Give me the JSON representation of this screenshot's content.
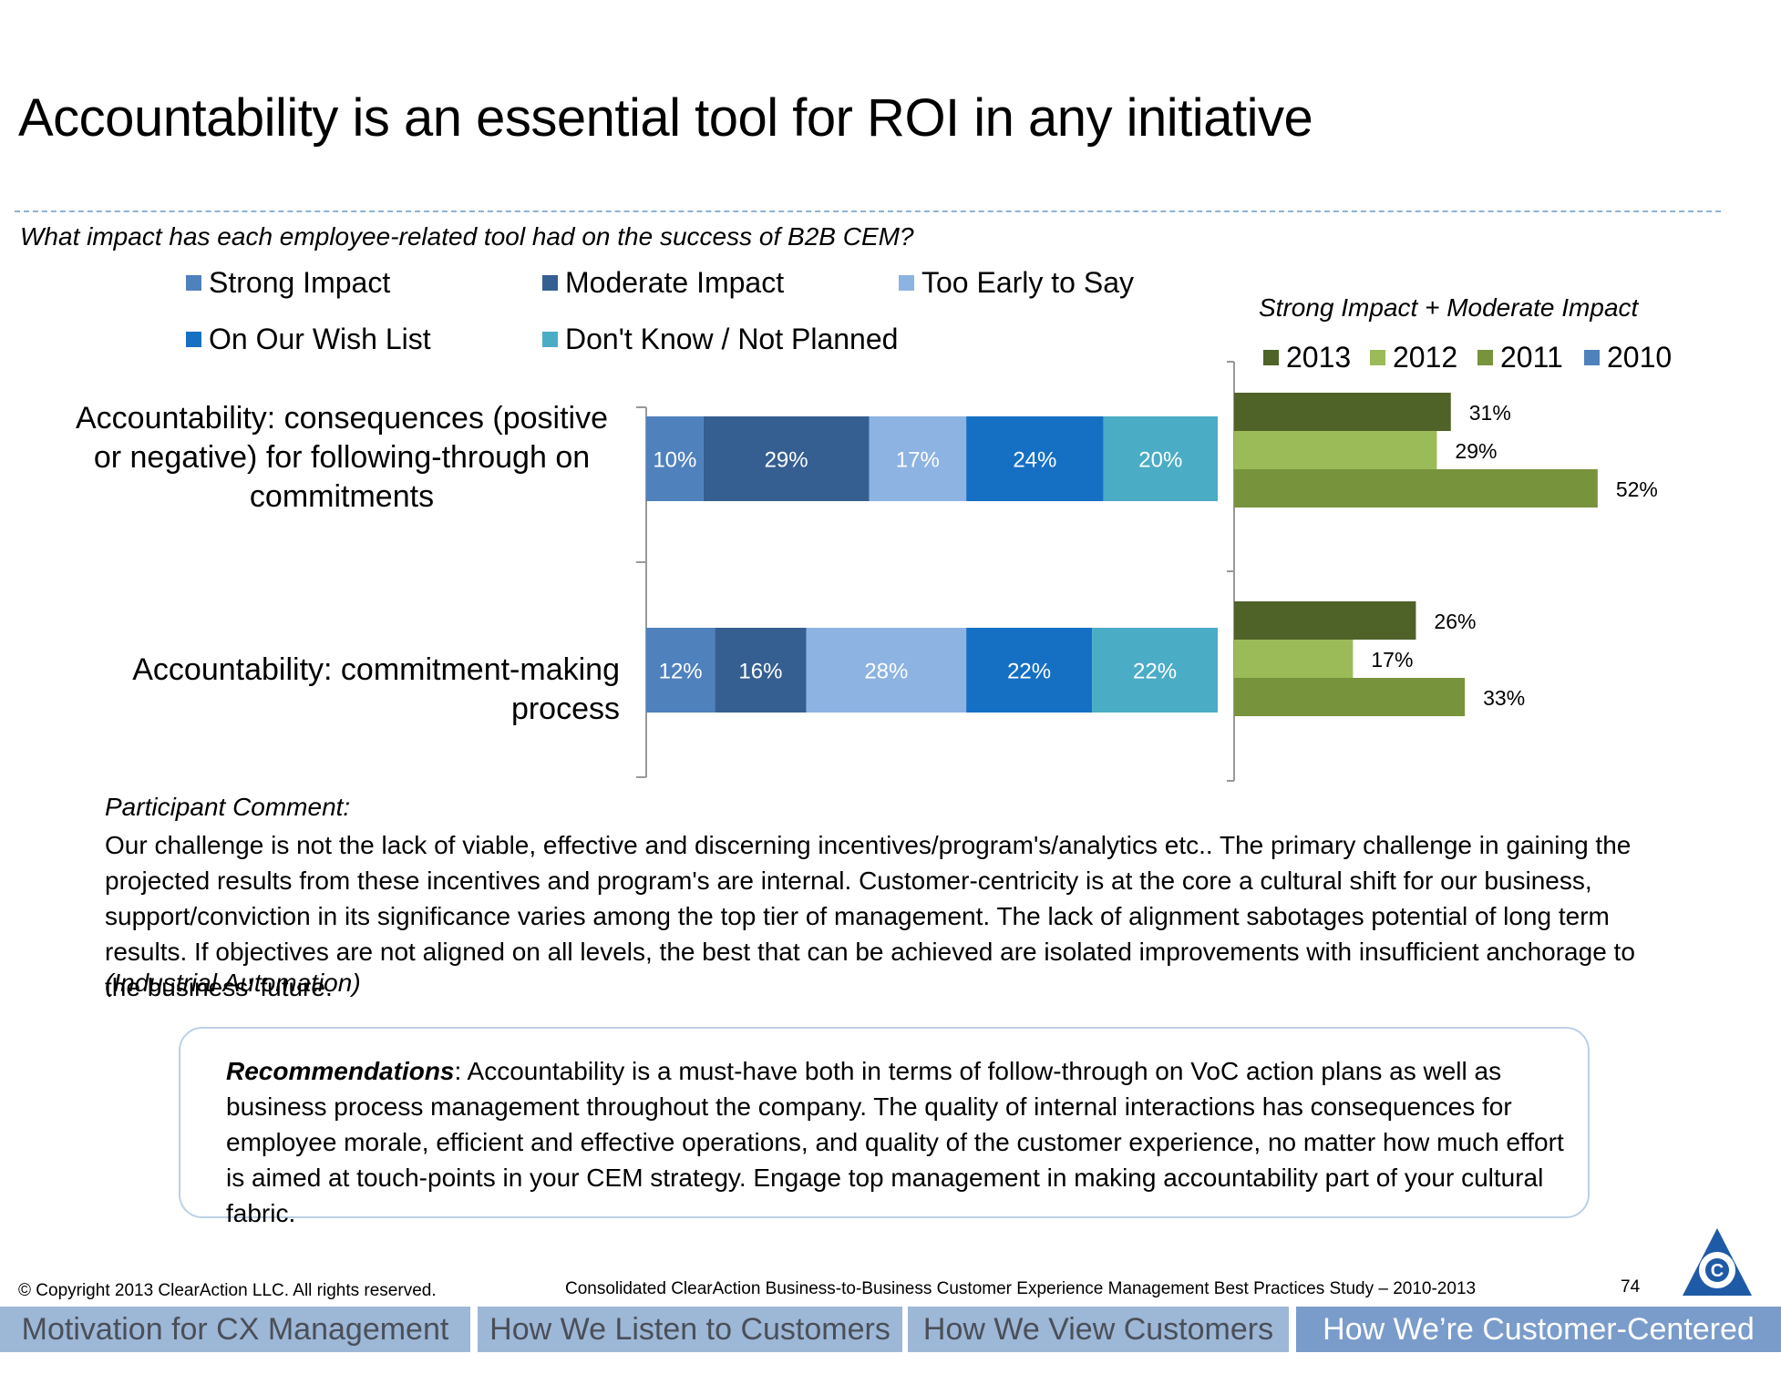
{
  "title": "Accountability is an essential tool for ROI in any initiative",
  "question": "What impact has each employee-related tool had on the success of B2B CEM?",
  "legend_left": [
    {
      "label": "Strong Impact",
      "color": "#4f81bd"
    },
    {
      "label": "Moderate Impact",
      "color": "#365f91"
    },
    {
      "label": "Too Early to Say",
      "color": "#8db3e2"
    },
    {
      "label": "On Our Wish List",
      "color": "#1570c4"
    },
    {
      "label": "Don't Know / Not Planned",
      "color": "#4bacc6"
    }
  ],
  "right_chart_title": "Strong Impact + Moderate Impact",
  "legend_right": [
    {
      "label": "2013",
      "color": "#4f6228"
    },
    {
      "label": "2012",
      "color": "#9bbb59"
    },
    {
      "label": "2011",
      "color": "#77933c"
    },
    {
      "label": "2010",
      "color": "#4f81bd"
    }
  ],
  "categories": [
    "Accountability: consequences (positive or negative) for following-through on commitments",
    "Accountability: commitment-making process"
  ],
  "chart_data": [
    {
      "type": "bar",
      "stacked": true,
      "orientation": "horizontal",
      "title": "What impact has each employee-related tool had on the success of B2B CEM?",
      "categories": [
        "Accountability: consequences (positive or negative) for following-through on commitments",
        "Accountability: commitment-making process"
      ],
      "series": [
        {
          "name": "Strong Impact",
          "color": "#4f81bd",
          "values": [
            10,
            12
          ]
        },
        {
          "name": "Moderate Impact",
          "color": "#365f91",
          "values": [
            29,
            16
          ]
        },
        {
          "name": "Too Early to Say",
          "color": "#8db3e2",
          "values": [
            17,
            28
          ]
        },
        {
          "name": "On Our Wish List",
          "color": "#1570c4",
          "values": [
            24,
            22
          ]
        },
        {
          "name": "Don't Know / Not Planned",
          "color": "#4bacc6",
          "values": [
            20,
            22
          ]
        }
      ],
      "value_labels": [
        [
          "10%",
          "29%",
          "17%",
          "24%",
          "20%"
        ],
        [
          "12%",
          "16%",
          "28%",
          "22%",
          "22%"
        ]
      ],
      "xlim": [
        0,
        100
      ],
      "legend": "top"
    },
    {
      "type": "bar",
      "orientation": "horizontal",
      "title": "Strong Impact + Moderate Impact",
      "categories": [
        "Accountability: consequences (positive or negative) for following-through on commitments",
        "Accountability: commitment-making process"
      ],
      "series": [
        {
          "name": "2013",
          "color": "#4f6228",
          "values": [
            31,
            26
          ],
          "labels": [
            "31%",
            "26%"
          ]
        },
        {
          "name": "2012",
          "color": "#9bbb59",
          "values": [
            29,
            17
          ],
          "labels": [
            "29%",
            "17%"
          ]
        },
        {
          "name": "2011",
          "color": "#77933c",
          "values": [
            52,
            33
          ],
          "labels": [
            "52%",
            "33%"
          ]
        },
        {
          "name": "2010",
          "color": "#4f81bd",
          "values": [
            null,
            null
          ],
          "labels": [
            "",
            ""
          ]
        }
      ],
      "xlim": [
        0,
        60
      ],
      "legend": "top"
    }
  ],
  "comment": {
    "heading": "Participant Comment:",
    "text": "Our challenge is not the lack of viable, effective and discerning incentives/program's/analytics etc.. The primary challenge in gaining the projected results from these incentives and program's are internal. Customer-centricity is at the core a cultural shift for our business, support/conviction in its significance varies among the top tier of management. The lack of alignment sabotages potential of long term results. If objectives are not aligned on all levels, the best that can be achieved are isolated  improvements with insufficient anchorage to the business' future.",
    "source": "(Industrial Automation)"
  },
  "recommendations": {
    "label": "Recommendations",
    "text": ":  Accountability is a must-have both in terms of follow-through on VoC action plans as well as business process management throughout the company.  The quality of internal interactions has consequences for employee morale, efficient and effective operations, and quality of the customer experience, no matter how much effort is aimed at touch-points in your CEM strategy.  Engage top management in making accountability part of your cultural fabric."
  },
  "footer": {
    "copyright": "© Copyright 2013 ClearAction LLC. All rights reserved.",
    "study": "Consolidated ClearAction Business-to-Business Customer Experience Management Best Practices Study – 2010-2013",
    "page_number": "74",
    "logo_letter": "C"
  },
  "nav_tabs": [
    {
      "label": "Motivation for CX Management",
      "active": false
    },
    {
      "label": "How We Listen to Customers",
      "active": false
    },
    {
      "label": "How We View Customers",
      "active": false
    },
    {
      "label": "How We’re Customer-Centered",
      "active": true
    }
  ]
}
